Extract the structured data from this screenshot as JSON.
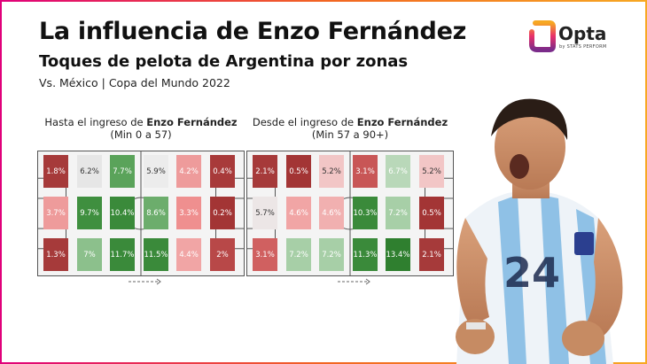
{
  "header": {
    "title": "La influencia de Enzo Fernández",
    "subtitle": "Toques de pelota de Argentina por zonas",
    "meta": "Vs. México | Copa del Mundo 2022"
  },
  "logo": {
    "word": "Opta",
    "tag": "by STATS PERFORM"
  },
  "panels": [
    {
      "title_prefix": "Hasta el ingreso de ",
      "title_bold": "Enzo Fernández",
      "title_sub": "(Min 0 a 57)",
      "grid": [
        [
          {
            "v": "1.8%",
            "c": "#a63a3a"
          },
          {
            "v": "6.2%",
            "c": "#e6e6e6"
          },
          {
            "v": "7.7%",
            "c": "#5aa35a"
          },
          {
            "v": "5.9%",
            "c": "#ececec"
          },
          {
            "v": "4.2%",
            "c": "#ee9b9b"
          },
          {
            "v": "0.4%",
            "c": "#a83a3a"
          }
        ],
        [
          {
            "v": "3.7%",
            "c": "#ee9b9b"
          },
          {
            "v": "9.7%",
            "c": "#3f8f3f"
          },
          {
            "v": "10.4%",
            "c": "#3a8a3a"
          },
          {
            "v": "8.6%",
            "c": "#6cad6c"
          },
          {
            "v": "3.3%",
            "c": "#ef8f8f"
          },
          {
            "v": "0.2%",
            "c": "#a33535"
          }
        ],
        [
          {
            "v": "1.3%",
            "c": "#a63a3a"
          },
          {
            "v": "7%",
            "c": "#8cc08c"
          },
          {
            "v": "11.7%",
            "c": "#3a8a3a"
          },
          {
            "v": "11.5%",
            "c": "#3a8a3a"
          },
          {
            "v": "4.4%",
            "c": "#f1a5a5"
          },
          {
            "v": "2%",
            "c": "#b84848"
          }
        ]
      ]
    },
    {
      "title_prefix": "Desde el ingreso de ",
      "title_bold": "Enzo Fernández",
      "title_sub": "(Min 57 a 90+)",
      "grid": [
        [
          {
            "v": "2.1%",
            "c": "#a63a3a"
          },
          {
            "v": "0.5%",
            "c": "#a33535"
          },
          {
            "v": "5.2%",
            "c": "#f2c6c6"
          },
          {
            "v": "3.1%",
            "c": "#c85656"
          },
          {
            "v": "6.7%",
            "c": "#b9d8b9"
          },
          {
            "v": "5.2%",
            "c": "#f2c6c6"
          }
        ],
        [
          {
            "v": "5.7%",
            "c": "#ece6e6"
          },
          {
            "v": "4.6%",
            "c": "#f1a5a5"
          },
          {
            "v": "4.6%",
            "c": "#f1b0b0"
          },
          {
            "v": "10.3%",
            "c": "#3a8a3a"
          },
          {
            "v": "7.2%",
            "c": "#a7cfa7"
          },
          {
            "v": "0.5%",
            "c": "#a33535"
          }
        ],
        [
          {
            "v": "3.1%",
            "c": "#d06060"
          },
          {
            "v": "7.2%",
            "c": "#a7cfa7"
          },
          {
            "v": "7.2%",
            "c": "#a7cfa7"
          },
          {
            "v": "11.3%",
            "c": "#3a8a3a"
          },
          {
            "v": "13.4%",
            "c": "#2f7f2f"
          },
          {
            "v": "2.1%",
            "c": "#a63a3a"
          }
        ]
      ]
    }
  ]
}
